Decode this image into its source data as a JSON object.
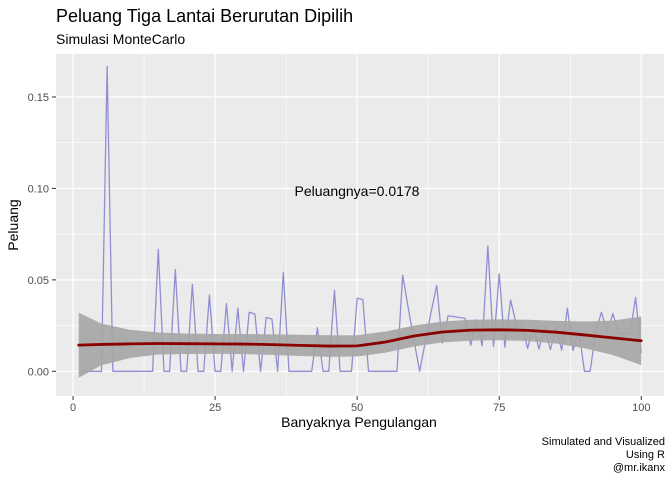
{
  "chart_data": {
    "type": "line",
    "title": "Peluang Tiga Lantai Berurutan Dipilih",
    "subtitle": "Simulasi MonteCarlo",
    "xlabel": "Banyaknya Pengulangan",
    "ylabel": "Peluang",
    "annotation": "Peluangnya=0.0178",
    "caption": [
      "Simulated and Visualized",
      "Using R",
      "@mr.ikanx"
    ],
    "xlim": [
      -3,
      104
    ],
    "ylim": [
      -0.0135,
      0.1735
    ],
    "x_ticks": [
      0,
      25,
      50,
      75,
      100
    ],
    "y_ticks": [
      0.0,
      0.05,
      0.1,
      0.15
    ],
    "x_tick_labels": [
      "0",
      "25",
      "50",
      "75",
      "100"
    ],
    "y_tick_labels": [
      "0.00",
      "0.05",
      "0.10",
      "0.15"
    ],
    "grid": true,
    "colors": {
      "panel": "#ebebeb",
      "grid": "#ffffff",
      "simulation_line": "#8f8fd1",
      "smooth_line": "#8b0000",
      "ribbon": "#a6a6a6"
    },
    "series": [
      {
        "x": [
          1,
          2,
          3,
          4,
          5,
          6,
          7,
          8,
          9,
          10,
          11,
          12,
          13,
          14,
          15,
          16,
          17,
          18,
          19,
          20,
          21,
          22,
          23,
          24,
          25,
          26,
          27,
          28,
          29,
          30,
          31,
          32,
          33,
          34,
          35,
          36,
          37,
          38,
          39,
          40,
          41,
          42,
          43,
          44,
          45,
          46,
          47,
          48,
          49,
          50,
          51,
          52,
          53,
          54,
          55,
          56,
          57,
          58,
          59,
          60,
          61,
          62,
          63,
          64,
          65,
          66,
          67,
          68,
          69,
          70,
          71,
          72,
          73,
          74,
          75,
          76,
          77,
          78,
          79,
          80,
          81,
          82,
          83,
          84,
          85,
          86,
          87,
          88,
          89,
          90,
          91,
          92,
          93,
          94,
          95,
          96,
          97,
          98,
          99,
          100
        ],
        "values": [
          0,
          0,
          0,
          0,
          0,
          0.1667,
          0,
          0,
          0,
          0,
          0,
          0,
          0,
          0,
          0.0667,
          0,
          0,
          0.0556,
          0,
          0,
          0.0476,
          0,
          0,
          0.0417,
          0,
          0,
          0.037,
          0,
          0.0345,
          0,
          0.0323,
          0.0313,
          0,
          0.0294,
          0.0286,
          0,
          0.0541,
          0,
          0,
          0,
          0,
          0,
          0.0238,
          0,
          0,
          0.0444,
          0,
          0,
          0,
          0.04,
          0.0392,
          0,
          0,
          0,
          0,
          0,
          0,
          0.0526,
          0.0345,
          0.0169,
          0,
          0.0164,
          0.0323,
          0.0469,
          0.0154,
          0.0303,
          0.0299,
          0.0294,
          0.029,
          0.0143,
          0.0282,
          0.0139,
          0.0685,
          0.0135,
          0.0533,
          0.0132,
          0.039,
          0.0256,
          0.0253,
          0.0125,
          0.0247,
          0.0122,
          0.0241,
          0.0119,
          0.0235,
          0.0116,
          0.0345,
          0.0114,
          0.0225,
          0,
          0,
          0.022,
          0.0323,
          0.0213,
          0.0316,
          0.0208,
          0.0206,
          0.0204,
          0.0404,
          0.01
        ]
      },
      {
        "x": [
          1,
          5,
          10,
          15,
          20,
          25,
          30,
          35,
          40,
          45,
          50,
          55,
          60,
          65,
          70,
          75,
          80,
          85,
          90,
          95,
          100
        ],
        "values": [
          0.0143,
          0.0147,
          0.015,
          0.0152,
          0.0151,
          0.015,
          0.0149,
          0.0146,
          0.0142,
          0.0138,
          0.0139,
          0.016,
          0.0193,
          0.0215,
          0.0225,
          0.0227,
          0.0224,
          0.0214,
          0.0199,
          0.0183,
          0.0167
        ],
        "lower": [
          -0.0035,
          0.0033,
          0.0073,
          0.0092,
          0.0095,
          0.0096,
          0.0094,
          0.009,
          0.0084,
          0.0079,
          0.0081,
          0.0102,
          0.0136,
          0.0158,
          0.0168,
          0.017,
          0.0166,
          0.0152,
          0.0126,
          0.0089,
          0.0034
        ],
        "upper": [
          0.0321,
          0.0261,
          0.0227,
          0.0212,
          0.0207,
          0.0204,
          0.0204,
          0.0202,
          0.02,
          0.0197,
          0.0197,
          0.0218,
          0.025,
          0.0272,
          0.0282,
          0.0284,
          0.0282,
          0.0276,
          0.0272,
          0.0277,
          0.03
        ]
      }
    ]
  }
}
